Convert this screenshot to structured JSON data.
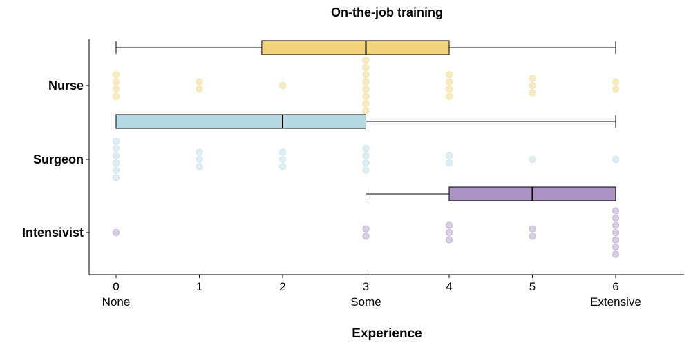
{
  "chart_data": {
    "type": "boxplot",
    "title": "On-the-job training",
    "xlabel": "Experience",
    "xlim": [
      -0.3,
      6.8
    ],
    "xticks": [
      0,
      1,
      2,
      3,
      4,
      5,
      6
    ],
    "xtick_labels": [
      "0",
      "1",
      "2",
      "3",
      "4",
      "5",
      "6"
    ],
    "xtick_sublabels": [
      {
        "x": 0,
        "label": "None"
      },
      {
        "x": 3,
        "label": "Some"
      },
      {
        "x": 6,
        "label": "Extensive"
      }
    ],
    "categories": [
      "Nurse",
      "Surgeon",
      "Intensivist"
    ],
    "groups": [
      {
        "name": "Nurse",
        "color": "#f0d37a",
        "point_color": "#f0d37a",
        "box": {
          "min": 0,
          "q1": 1.75,
          "median": 3,
          "q3": 4,
          "max": 6
        },
        "points": [
          {
            "x": 0,
            "count": 4
          },
          {
            "x": 1,
            "count": 2
          },
          {
            "x": 2,
            "count": 1
          },
          {
            "x": 3,
            "count": 8
          },
          {
            "x": 4,
            "count": 4
          },
          {
            "x": 5,
            "count": 3
          },
          {
            "x": 6,
            "count": 2
          }
        ]
      },
      {
        "name": "Surgeon",
        "color": "#b5d9e3",
        "point_color": "#b5d9e3",
        "box": {
          "min": 0,
          "q1": 0,
          "median": 2,
          "q3": 3,
          "max": 6
        },
        "points": [
          {
            "x": 0,
            "count": 6
          },
          {
            "x": 1,
            "count": 3
          },
          {
            "x": 2,
            "count": 3
          },
          {
            "x": 3,
            "count": 4
          },
          {
            "x": 4,
            "count": 2
          },
          {
            "x": 5,
            "count": 1
          },
          {
            "x": 6,
            "count": 1
          }
        ]
      },
      {
        "name": "Intensivist",
        "color": "#aa92c2",
        "point_color": "#aa92c2",
        "box": {
          "min": 3,
          "q1": 4,
          "median": 5,
          "q3": 6,
          "max": 6
        },
        "points": [
          {
            "x": 0,
            "count": 1
          },
          {
            "x": 3,
            "count": 2
          },
          {
            "x": 4,
            "count": 3
          },
          {
            "x": 5,
            "count": 2
          },
          {
            "x": 6,
            "count": 7
          }
        ]
      }
    ],
    "grid": false,
    "legend": "none"
  }
}
